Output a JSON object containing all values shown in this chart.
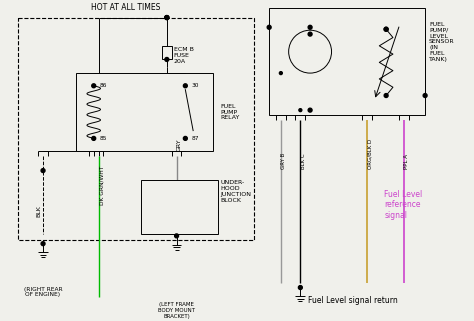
{
  "bg_color": "#f0f0eb",
  "line_color": "#000000",
  "wire_colors": {
    "blk": "#000000",
    "dk_grn_wht": "#00bb00",
    "gry": "#888888",
    "gry_b": "#999999",
    "blk_c": "#000000",
    "org_blk": "#c8a030",
    "ppl": "#cc44cc"
  },
  "labels": {
    "hot_at_all_times": "HOT AT ALL TIMES",
    "ecm_b_fuse": "ECM B\nFUSE\n20A",
    "fuel_pump_relay": "FUEL\nPUMP\nRELAY",
    "underhood": "UNDER-\nHOOD\nJUNCTION\nBLOCK",
    "blk": "BLK",
    "dk_grn_wht": "DK GRN/WHT",
    "gry": "GRY",
    "right_rear": "(RIGHT REAR\nOF ENGINE)",
    "left_frame": "(LEFT FRAME\nBODY MOUNT\nBRACKET)",
    "fuel_pump_sensor": "FUEL\nPUMP/\nLEVEL\nSENSOR\n(IN\nFUEL\nTANK)",
    "gry_b": "GRY B",
    "blk_c": "BLK C",
    "org_blk_d": "ORG/BLK D",
    "ppl_a": "PPL A",
    "fuel_level_ref": "Fuel Level\nreference\nsignal",
    "fuel_level_return": "Fuel Level signal return"
  }
}
